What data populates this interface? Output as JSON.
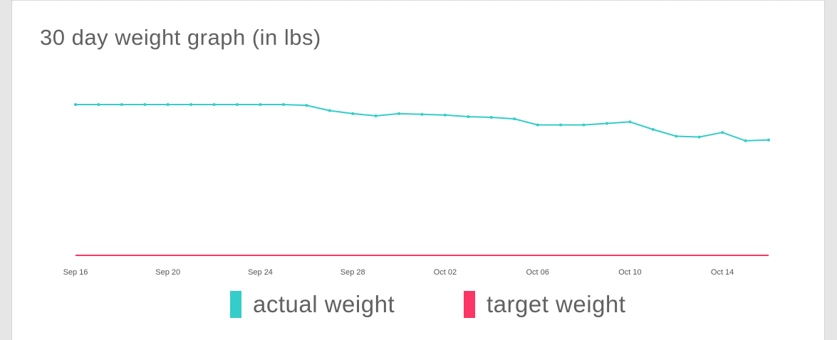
{
  "chart_data": {
    "type": "line",
    "title": "30 day weight graph (in lbs)",
    "x": [
      "Sep 16",
      "Sep 17",
      "Sep 18",
      "Sep 19",
      "Sep 20",
      "Sep 21",
      "Sep 22",
      "Sep 23",
      "Sep 24",
      "Sep 25",
      "Sep 26",
      "Sep 27",
      "Sep 28",
      "Sep 29",
      "Sep 30",
      "Oct 01",
      "Oct 02",
      "Oct 03",
      "Oct 04",
      "Oct 05",
      "Oct 06",
      "Oct 07",
      "Oct 08",
      "Oct 09",
      "Oct 10",
      "Oct 11",
      "Oct 12",
      "Oct 13",
      "Oct 14",
      "Oct 15",
      "Oct 16"
    ],
    "x_tick_labels": [
      "Sep 16",
      "Sep 20",
      "Sep 24",
      "Sep 28",
      "Oct 02",
      "Oct 06",
      "Oct 10",
      "Oct 14"
    ],
    "series": [
      {
        "name": "actual weight",
        "color": "#35cdc9",
        "values": [
          200.0,
          200.0,
          200.0,
          200.0,
          200.0,
          200.0,
          200.0,
          200.0,
          200.0,
          200.0,
          199.9,
          199.2,
          198.8,
          198.5,
          198.8,
          198.7,
          198.6,
          198.4,
          198.3,
          198.1,
          197.3,
          197.3,
          197.3,
          197.5,
          197.7,
          196.7,
          195.8,
          195.7,
          196.3,
          195.2,
          195.3
        ]
      },
      {
        "name": "target weight",
        "color": "#fb3565",
        "values": [
          180,
          180,
          180,
          180,
          180,
          180,
          180,
          180,
          180,
          180,
          180,
          180,
          180,
          180,
          180,
          180,
          180,
          180,
          180,
          180,
          180,
          180,
          180,
          180,
          180,
          180,
          180,
          180,
          180,
          180,
          180
        ]
      }
    ],
    "ylim": [
      175,
      210
    ],
    "grid": false,
    "legend_position": "bottom-center"
  }
}
